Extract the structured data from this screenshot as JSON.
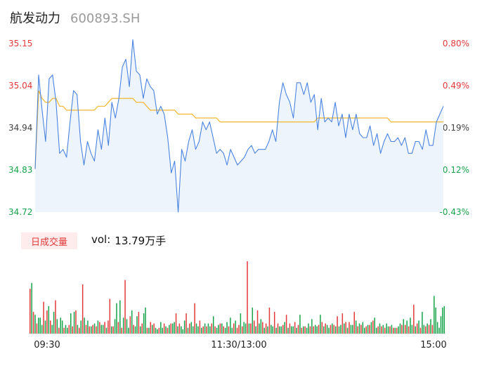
{
  "header": {
    "name": "航发动力",
    "code": "600893.SH"
  },
  "volume_panel": {
    "tab_label": "日成交量",
    "vol_label": "vol:",
    "vol_value": "13.79万手"
  },
  "colors": {
    "price_line": "#4a84e0",
    "avg_line": "#f2b630",
    "up": "#e23a3a",
    "down": "#17a34a",
    "area_fill": "#eef4fc"
  },
  "chart_data": [
    {
      "type": "line",
      "y_left_ticks": [
        "35.15",
        "35.04",
        "34.94",
        "34.83",
        "34.72"
      ],
      "y_right_ticks": [
        "0.80%",
        "0.49%",
        "0.19%",
        "-0.12%",
        "-0.43%"
      ],
      "ylim": [
        34.72,
        35.15
      ],
      "x_ticks": [
        "09:30",
        "11:30/13:00",
        "15:00"
      ],
      "series": [
        {
          "values": [
            34.83,
            35.07,
            34.98,
            34.9,
            35.06,
            35.07,
            35.0,
            34.87,
            34.88,
            34.86,
            34.95,
            35.03,
            35.02,
            34.9,
            34.84,
            34.9,
            34.87,
            34.85,
            34.93,
            34.88,
            34.96,
            34.89,
            35.0,
            34.96,
            35.01,
            35.09,
            35.11,
            35.04,
            35.16,
            35.08,
            35.07,
            35.01,
            35.06,
            35.04,
            35.03,
            34.97,
            34.99,
            34.97,
            34.91,
            34.82,
            34.85,
            34.72,
            34.88,
            34.85,
            34.9,
            34.93,
            34.88,
            34.9,
            34.95,
            34.93,
            34.95,
            34.91,
            34.87,
            34.88,
            34.87,
            34.84,
            34.88,
            34.86,
            34.84,
            34.85,
            34.86,
            34.88,
            34.89,
            34.87,
            34.88,
            34.88,
            34.88,
            34.9,
            34.93,
            34.9,
            35.0,
            35.05,
            35.02,
            35.0,
            34.96,
            35.05,
            35.05,
            35.02,
            35.05,
            35.0,
            35.02,
            34.93,
            35.01,
            34.95,
            34.96,
            34.95,
            35.0,
            34.94,
            34.97,
            34.91,
            34.97,
            34.93,
            34.97,
            34.92,
            34.91,
            34.91,
            34.94,
            34.89,
            34.92,
            34.87,
            34.9,
            34.92,
            34.9,
            34.9,
            34.91,
            34.89,
            34.91,
            34.87,
            34.87,
            34.9,
            34.9,
            34.88,
            34.93,
            34.89,
            34.89,
            34.95,
            34.97,
            34.99
          ],
          "color_key": "price_line"
        },
        {
          "values": [
            34.83,
            35.03,
            35.01,
            35.0,
            35.0,
            35.01,
            35.01,
            34.99,
            34.99,
            34.98,
            34.98,
            34.98,
            34.98,
            34.98,
            34.98,
            34.98,
            34.98,
            34.98,
            34.99,
            34.99,
            34.99,
            35.0,
            35.01,
            35.01,
            35.01,
            35.01,
            35.01,
            35.01,
            35.01,
            35.0,
            35.0,
            35.0,
            34.99,
            34.98,
            34.98,
            34.98,
            34.98,
            34.98,
            34.98,
            34.98,
            34.98,
            34.97,
            34.97,
            34.97,
            34.97,
            34.97,
            34.96,
            34.96,
            34.96,
            34.96,
            34.96,
            34.96,
            34.96,
            34.95,
            34.95,
            34.95,
            34.95,
            34.95,
            34.95,
            34.95,
            34.95,
            34.95,
            34.95,
            34.95,
            34.95,
            34.95,
            34.95,
            34.95,
            34.95,
            34.95,
            34.95,
            34.95,
            34.95,
            34.95,
            34.95,
            34.95,
            34.95,
            34.95,
            34.95,
            34.95,
            34.95,
            34.96,
            34.96,
            34.96,
            34.96,
            34.96,
            34.96,
            34.96,
            34.96,
            34.96,
            34.96,
            34.96,
            34.96,
            34.96,
            34.96,
            34.96,
            34.96,
            34.96,
            34.96,
            34.96,
            34.96,
            34.96,
            34.95,
            34.95,
            34.95,
            34.95,
            34.95,
            34.95,
            34.95,
            34.95,
            34.95,
            34.95,
            34.95,
            34.95,
            34.95,
            34.95,
            34.95,
            34.95
          ],
          "color_key": "avg_line"
        }
      ]
    },
    {
      "type": "bar",
      "values": [
        62,
        70,
        30,
        26,
        14,
        22,
        22,
        12,
        44,
        18,
        32,
        38,
        18,
        12,
        30,
        46,
        20,
        8,
        22,
        18,
        8,
        12,
        8,
        12,
        28,
        10,
        30,
        32,
        12,
        8,
        18,
        68,
        22,
        12,
        18,
        10,
        10,
        12,
        14,
        10,
        18,
        16,
        12,
        12,
        16,
        8,
        18,
        48,
        10,
        10,
        20,
        42,
        16,
        46,
        8,
        22,
        74,
        20,
        8,
        24,
        32,
        12,
        10,
        24,
        30,
        10,
        14,
        28,
        36,
        8,
        8,
        16,
        12,
        14,
        8,
        6,
        8,
        16,
        8,
        14,
        10,
        8,
        12,
        14,
        14,
        16,
        28,
        10,
        14,
        10,
        6,
        18,
        28,
        8,
        14,
        16,
        10,
        42,
        14,
        10,
        18,
        8,
        10,
        14,
        10,
        14,
        10,
        14,
        24,
        10,
        8,
        12,
        14,
        14,
        10,
        8,
        16,
        10,
        22,
        8,
        14,
        18,
        8,
        12,
        28,
        10,
        16,
        14,
        100,
        14,
        14,
        36,
        18,
        10,
        32,
        14,
        20,
        16,
        8,
        14,
        10,
        36,
        12,
        10,
        30,
        8,
        14,
        10,
        10,
        12,
        16,
        26,
        8,
        14,
        10,
        10,
        16,
        8,
        12,
        26,
        8,
        10,
        10,
        8,
        14,
        10,
        20,
        10,
        12,
        10,
        12,
        26,
        16,
        10,
        14,
        12,
        8,
        12,
        14,
        12,
        10,
        24,
        10,
        12,
        28,
        14,
        16,
        8,
        16,
        12,
        12,
        30,
        18,
        10,
        14,
        12,
        16,
        8,
        10,
        12,
        12,
        16,
        18,
        22,
        8,
        10,
        14,
        10,
        12,
        8,
        14,
        10,
        10,
        12,
        8,
        8,
        8,
        10,
        14,
        12,
        20,
        12,
        18,
        10,
        22,
        12,
        40,
        10,
        14,
        18,
        8,
        30,
        12,
        10,
        14,
        12,
        20,
        12,
        52,
        36,
        16,
        8,
        24,
        36,
        38
      ],
      "up": [
        1,
        0,
        1,
        0,
        1,
        0,
        0,
        0,
        1,
        0,
        1,
        0,
        1,
        0,
        0,
        1,
        0,
        1,
        0,
        0,
        1,
        0,
        0,
        1,
        0,
        1,
        0,
        1,
        0,
        1,
        0,
        1,
        0,
        1,
        0,
        1,
        0,
        1,
        0,
        1,
        0,
        1,
        0,
        0,
        1,
        0,
        1,
        1,
        0,
        1,
        0,
        0,
        1,
        0,
        1,
        0,
        1,
        0,
        0,
        1,
        0,
        1,
        0,
        0,
        1,
        0,
        1,
        0,
        0,
        1,
        0,
        1,
        0,
        1,
        0,
        0,
        1,
        0,
        0,
        1,
        0,
        1,
        0,
        1,
        0,
        0,
        1,
        0,
        1,
        0,
        0,
        0,
        1,
        0,
        1,
        0,
        0,
        1,
        0,
        0,
        1,
        0,
        1,
        0,
        1,
        0,
        0,
        1,
        0,
        1,
        0,
        0,
        1,
        0,
        1,
        0,
        0,
        1,
        0,
        0,
        1,
        0,
        1,
        1,
        0,
        1,
        0,
        0,
        1,
        0,
        1,
        0,
        1,
        0,
        1,
        0,
        0,
        1,
        0,
        1,
        0,
        1,
        0,
        0,
        1,
        0,
        1,
        0,
        0,
        1,
        0,
        1,
        0,
        1,
        0,
        0,
        1,
        0,
        1,
        0,
        1,
        0,
        1,
        0,
        0,
        1,
        0,
        1,
        0,
        0,
        1,
        0,
        1,
        0,
        1,
        0,
        0,
        1,
        0,
        1,
        0,
        1,
        0,
        0,
        1,
        0,
        1,
        0,
        1,
        0,
        0,
        1,
        0,
        1,
        0,
        1,
        0,
        0,
        1,
        0,
        1,
        0,
        1,
        0,
        0,
        1,
        0,
        1,
        0,
        1,
        0,
        0,
        1,
        0,
        1,
        0,
        1,
        0,
        0,
        1,
        0,
        1,
        0,
        1,
        0,
        0,
        1,
        0,
        1,
        0,
        1,
        0,
        0,
        1,
        0,
        1,
        0,
        1,
        0,
        0,
        0,
        0
      ]
    }
  ]
}
